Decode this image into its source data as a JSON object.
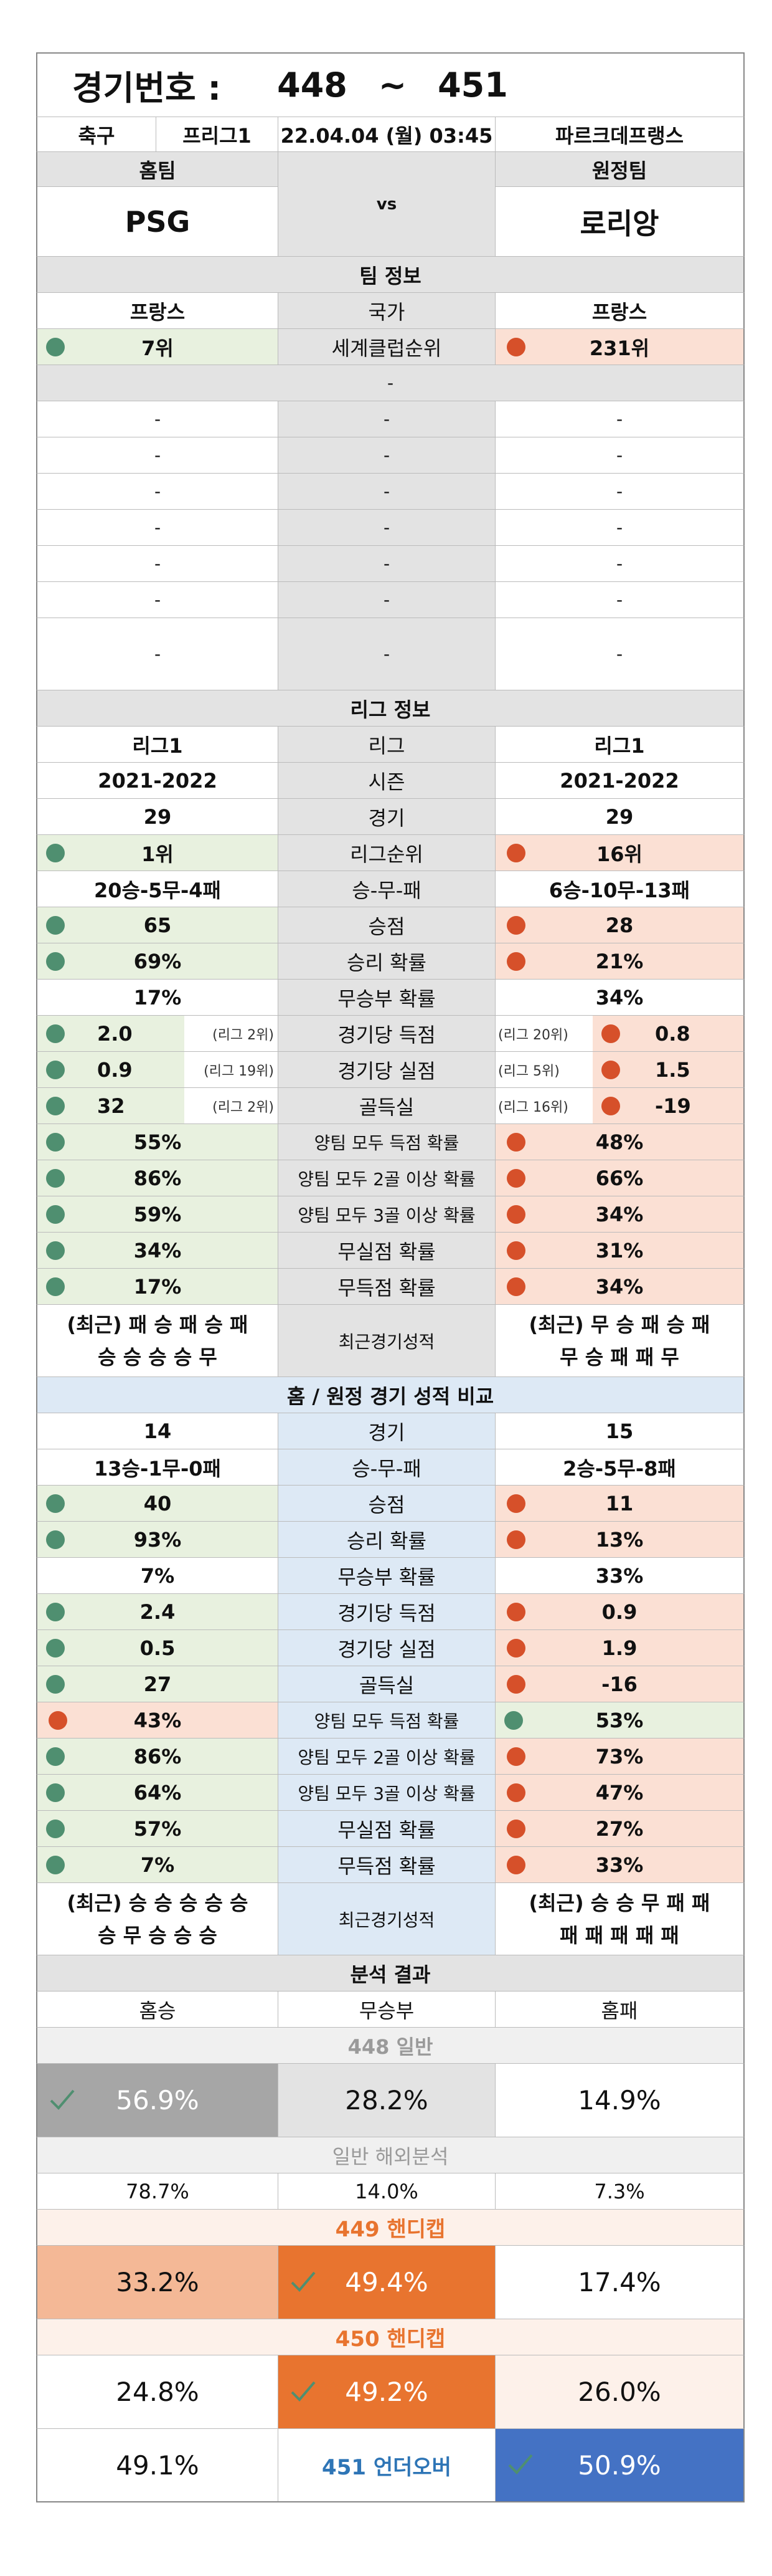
{
  "header": {
    "label": "경기번호 :",
    "from": "448",
    "tilde": "~",
    "to": "451"
  },
  "match": {
    "sport": "축구",
    "league": "프리그1",
    "datetime": "22.04.04 (월) 03:45",
    "stadium": "파르크데프랭스"
  },
  "teams": {
    "home_label": "홈팀",
    "away_label": "원정팀",
    "vs": "vs",
    "home": "PSG",
    "away": "로리앙"
  },
  "team_info": {
    "title": "팀 정보",
    "country": {
      "home": "프랑스",
      "label": "국가",
      "away": "프랑스"
    },
    "world_rank": {
      "home": "7위",
      "label": "세계클럽순위",
      "away": "231위"
    },
    "sub_dash": "-",
    "empty_rows": [
      {
        "home": "-",
        "mid": "-",
        "away": "-"
      },
      {
        "home": "-",
        "mid": "-",
        "away": "-"
      },
      {
        "home": "-",
        "mid": "-",
        "away": "-"
      },
      {
        "home": "-",
        "mid": "-",
        "away": "-"
      },
      {
        "home": "-",
        "mid": "-",
        "away": "-"
      },
      {
        "home": "-",
        "mid": "-",
        "away": "-"
      },
      {
        "home": "-",
        "mid": "-",
        "away": "-"
      }
    ]
  },
  "league_info": {
    "title": "리그 정보",
    "rows": [
      {
        "home": "리그1",
        "label": "리그",
        "away": "리그1",
        "style": "plain"
      },
      {
        "home": "2021-2022",
        "label": "시즌",
        "away": "2021-2022",
        "style": "plain"
      },
      {
        "home": "29",
        "label": "경기",
        "away": "29",
        "style": "plain"
      },
      {
        "home": "1위",
        "label": "리그순위",
        "away": "16위",
        "style": "cmp"
      },
      {
        "home": "20승-5무-4패",
        "label": "승-무-패",
        "away": "6승-10무-13패",
        "style": "plain"
      },
      {
        "home": "65",
        "label": "승점",
        "away": "28",
        "style": "cmp"
      },
      {
        "home": "69%",
        "label": "승리 확률",
        "away": "21%",
        "style": "cmp"
      },
      {
        "home": "17%",
        "label": "무승부 확률",
        "away": "34%",
        "style": "plain"
      },
      {
        "home": "2.0",
        "home_rank": "(리그 2위)",
        "label": "경기당 득점",
        "away": "0.8",
        "away_rank": "(리그 20위)",
        "style": "rank"
      },
      {
        "home": "0.9",
        "home_rank": "(리그 19위)",
        "label": "경기당 실점",
        "away": "1.5",
        "away_rank": "(리그 5위)",
        "style": "rank"
      },
      {
        "home": "32",
        "home_rank": "(리그 2위)",
        "label": "골득실",
        "away": "-19",
        "away_rank": "(리그 16위)",
        "style": "rank"
      },
      {
        "home": "55%",
        "label": "양팀 모두 득점 확률",
        "away": "48%",
        "style": "cmp"
      },
      {
        "home": "86%",
        "label": "양팀 모두 2골 이상 확률",
        "away": "66%",
        "style": "cmp"
      },
      {
        "home": "59%",
        "label": "양팀 모두 3골 이상 확률",
        "away": "34%",
        "style": "cmp"
      },
      {
        "home": "34%",
        "label": "무실점 확률",
        "away": "31%",
        "style": "cmp"
      },
      {
        "home": "17%",
        "label": "무득점 확률",
        "away": "34%",
        "style": "cmp"
      }
    ],
    "recent": {
      "home_1": "(최근) 패 승 패 승 패",
      "home_2": "승 승 승 승 무",
      "label": "최근경기성적",
      "away_1": "(최근) 무 승 패 승 패",
      "away_2": "무 승 패 패 무"
    }
  },
  "home_away": {
    "title": "홈 / 원정 경기 성적 비교",
    "rows": [
      {
        "home": "14",
        "label": "경기",
        "away": "15",
        "style": "plain"
      },
      {
        "home": "13승-1무-0패",
        "label": "승-무-패",
        "away": "2승-5무-8패",
        "style": "plain"
      },
      {
        "home": "40",
        "label": "승점",
        "away": "11",
        "style": "cmp"
      },
      {
        "home": "93%",
        "label": "승리 확률",
        "away": "13%",
        "style": "cmp"
      },
      {
        "home": "7%",
        "label": "무승부 확률",
        "away": "33%",
        "style": "plain"
      },
      {
        "home": "2.4",
        "label": "경기당 득점",
        "away": "0.9",
        "style": "cmp"
      },
      {
        "home": "0.5",
        "label": "경기당 실점",
        "away": "1.9",
        "style": "cmp"
      },
      {
        "home": "27",
        "label": "골득실",
        "away": "-16",
        "style": "cmp"
      },
      {
        "home": "43%",
        "label": "양팀 모두 득점 확률",
        "away": "53%",
        "style": "rev"
      },
      {
        "home": "86%",
        "label": "양팀 모두 2골 이상 확률",
        "away": "73%",
        "style": "cmp"
      },
      {
        "home": "64%",
        "label": "양팀 모두 3골 이상 확률",
        "away": "47%",
        "style": "cmp"
      },
      {
        "home": "57%",
        "label": "무실점 확률",
        "away": "27%",
        "style": "cmp"
      },
      {
        "home": "7%",
        "label": "무득점 확률",
        "away": "33%",
        "style": "cmp"
      }
    ],
    "recent": {
      "home_1": "(최근) 승 승 승 승 승",
      "home_2": "승 무 승 승 승",
      "label": "최근경기성적",
      "away_1": "(최근) 승 승 무 패 패",
      "away_2": "패 패 패 패 패"
    }
  },
  "analysis": {
    "title": "분석 결과",
    "cols": {
      "home": "홈승",
      "draw": "무승부",
      "away": "홈패"
    },
    "general": {
      "title": "448 일반",
      "home": "56.9%",
      "draw": "28.2%",
      "away": "14.9%"
    },
    "overseas": {
      "title": "일반 해외분석",
      "home": "78.7%",
      "draw": "14.0%",
      "away": "7.3%"
    },
    "handicap449": {
      "title": "449 핸디캡",
      "home": "33.2%",
      "draw": "49.4%",
      "away": "17.4%"
    },
    "handicap450": {
      "title": "450 핸디캡",
      "home": "24.8%",
      "draw": "49.2%",
      "away": "26.0%"
    },
    "underover": {
      "label": "451 언더오버",
      "under": "49.1%",
      "over": "50.9%"
    }
  },
  "colors": {
    "green_dot": "#4f8f70",
    "orange_dot": "#d6502a",
    "accent_orange": "#e8742f",
    "blue": "#4472c4",
    "gray_pick": "#a6a6a6"
  },
  "icons": {
    "pick": "check-icon"
  }
}
